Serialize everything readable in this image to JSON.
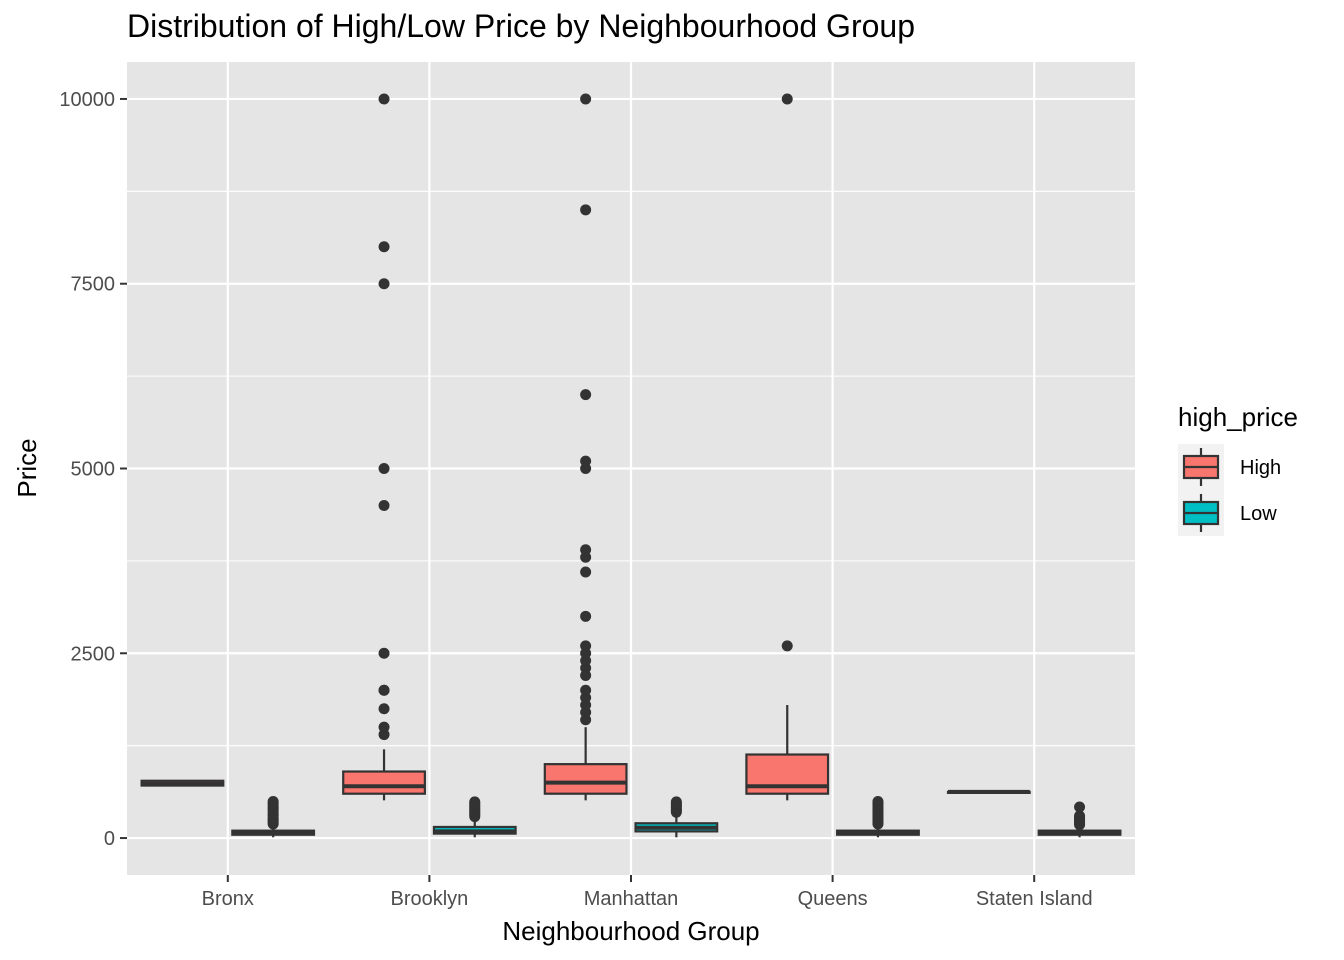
{
  "colors": {
    "panel": "#e5e5e5",
    "grid": "#ffffff",
    "box_outline": "#333333",
    "outlier": "#333333"
  },
  "chart_data": {
    "type": "boxplot",
    "title": "Distribution of High/Low Price by Neighbourhood Group",
    "xlabel": "Neighbourhood Group",
    "ylabel": "Price",
    "categories": [
      "Bronx",
      "Brooklyn",
      "Manhattan",
      "Queens",
      "Staten Island"
    ],
    "ylim": [
      -500,
      10500
    ],
    "yticks": [
      0,
      2500,
      5000,
      7500,
      10000
    ],
    "grid": true,
    "legend": {
      "title": "high_price",
      "placement": "right"
    },
    "series": [
      {
        "name": "High",
        "color": "#f8766d",
        "boxes": [
          {
            "category": "Bronx",
            "q1": 710,
            "median": 735,
            "q3": 775,
            "whisker_low": 700,
            "whisker_high": 775,
            "outliers": []
          },
          {
            "category": "Brooklyn",
            "q1": 600,
            "median": 700,
            "q3": 900,
            "whisker_low": 510,
            "whisker_high": 1200,
            "outliers": [
              1400,
              1500,
              1750,
              2000,
              2000,
              2500,
              4500,
              5000,
              7500,
              8000,
              10000
            ]
          },
          {
            "category": "Manhattan",
            "q1": 600,
            "median": 750,
            "q3": 1000,
            "whisker_low": 510,
            "whisker_high": 1500,
            "outliers": [
              1600,
              1700,
              1800,
              1900,
              2000,
              2200,
              2300,
              2400,
              2500,
              2600,
              3000,
              3600,
              3800,
              3900,
              5000,
              5100,
              6000,
              8500,
              10000
            ]
          },
          {
            "category": "Queens",
            "q1": 600,
            "median": 700,
            "q3": 1130,
            "whisker_low": 510,
            "whisker_high": 1800,
            "outliers": [
              2600,
              10000
            ]
          },
          {
            "category": "Staten Island",
            "q1": 625,
            "median": 625,
            "q3": 625,
            "whisker_low": 625,
            "whisker_high": 625,
            "outliers": []
          }
        ]
      },
      {
        "name": "Low",
        "color": "#00bfc4",
        "boxes": [
          {
            "category": "Bronx",
            "q1": 45,
            "median": 65,
            "q3": 100,
            "whisker_low": 10,
            "whisker_high": 180,
            "outliers": [
              190,
              210,
              230,
              250,
              270,
              300,
              320,
              350,
              380,
              400,
              420,
              450,
              470,
              495
            ]
          },
          {
            "category": "Brooklyn",
            "q1": 60,
            "median": 90,
            "q3": 150,
            "whisker_low": 10,
            "whisker_high": 280,
            "outliers": [
              290,
              310,
              330,
              350,
              370,
              390,
              410,
              430,
              450,
              470,
              490
            ]
          },
          {
            "category": "Manhattan",
            "q1": 90,
            "median": 140,
            "q3": 200,
            "whisker_low": 10,
            "whisker_high": 340,
            "outliers": [
              350,
              370,
              390,
              410,
              430,
              450,
              470,
              490
            ]
          },
          {
            "category": "Queens",
            "q1": 45,
            "median": 70,
            "q3": 100,
            "whisker_low": 10,
            "whisker_high": 180,
            "outliers": [
              190,
              210,
              230,
              250,
              270,
              300,
              320,
              350,
              380,
              400,
              420,
              450,
              470,
              495
            ]
          },
          {
            "category": "Staten Island",
            "q1": 45,
            "median": 70,
            "q3": 100,
            "whisker_low": 10,
            "whisker_high": 170,
            "outliers": [
              180,
              200,
              220,
              240,
              260,
              280,
              300,
              420
            ]
          }
        ]
      }
    ]
  }
}
